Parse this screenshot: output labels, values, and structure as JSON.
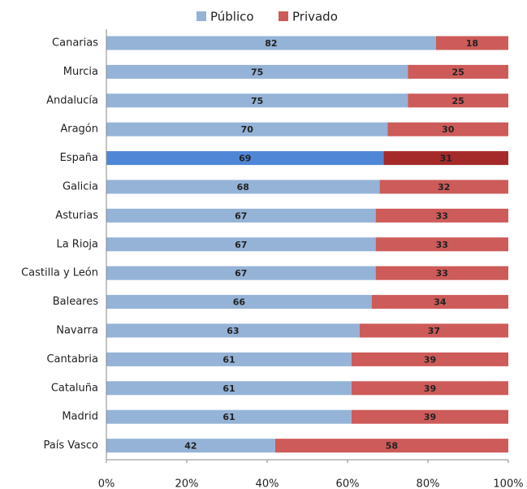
{
  "chart_data": {
    "type": "stacked_bar_horizontal",
    "categories": [
      "Canarias",
      "Murcia",
      "Andalucía",
      "Aragón",
      "España",
      "Galicia",
      "Asturias",
      "La Rioja",
      "Castilla y León",
      "Baleares",
      "Navarra",
      "Cantabria",
      "Cataluña",
      "Madrid",
      "País Vasco"
    ],
    "series": [
      {
        "name": "Público",
        "color": "#95b3d7",
        "highlight_color": "#4f87d6",
        "values": [
          82,
          75,
          75,
          70,
          69,
          68,
          67,
          67,
          67,
          66,
          63,
          61,
          61,
          61,
          42
        ]
      },
      {
        "name": "Privado",
        "color": "#cd5b59",
        "highlight_color": "#a52a2a",
        "values": [
          18,
          25,
          25,
          30,
          31,
          32,
          33,
          33,
          33,
          34,
          37,
          39,
          39,
          39,
          58
        ]
      }
    ],
    "highlight_index": 4,
    "xlim": [
      0,
      100
    ],
    "xticks": [
      {
        "value": 0,
        "label": "0%"
      },
      {
        "value": 20,
        "label": "20%"
      },
      {
        "value": 40,
        "label": "40%"
      },
      {
        "value": 60,
        "label": "60%"
      },
      {
        "value": 80,
        "label": "80%"
      },
      {
        "value": 100,
        "label": "100%"
      }
    ],
    "legend": "top"
  }
}
